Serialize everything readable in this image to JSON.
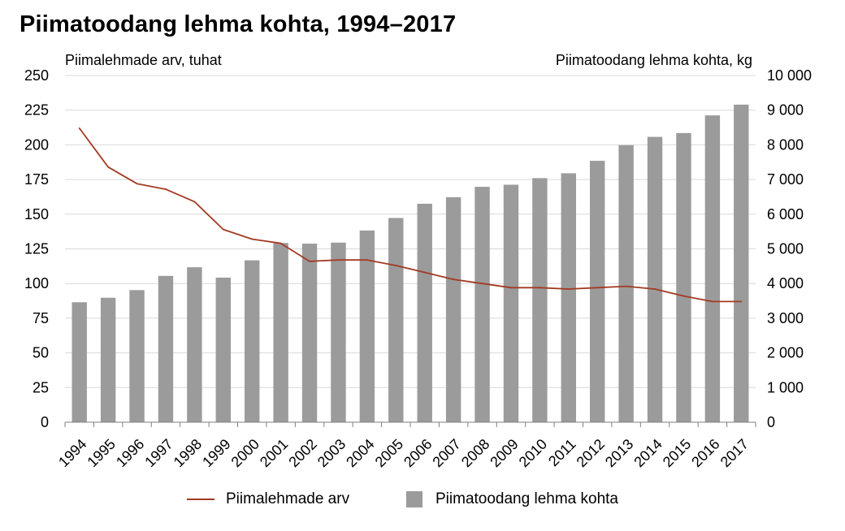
{
  "chart_data": {
    "type": "bar",
    "title": "Piimatoodang lehma kohta, 1994–2017",
    "left_axis_label": "Piimalehmade arv, tuhat",
    "right_axis_label": "Piimatoodang lehma kohta, kg",
    "categories": [
      "1994",
      "1995",
      "1996",
      "1997",
      "1998",
      "1999",
      "2000",
      "2001",
      "2002",
      "2003",
      "2004",
      "2005",
      "2006",
      "2007",
      "2008",
      "2009",
      "2010",
      "2011",
      "2012",
      "2013",
      "2014",
      "2015",
      "2016",
      "2017"
    ],
    "series": [
      {
        "name": "Piimalehmade arv",
        "type": "line",
        "axis": "left",
        "color": "#a23b22",
        "values": [
          212,
          184,
          172,
          168,
          159,
          139,
          132,
          129,
          116,
          117,
          117,
          113,
          108,
          103,
          100,
          97,
          97,
          96,
          97,
          98,
          96,
          91,
          87,
          87
        ]
      },
      {
        "name": "Piimatoodang lehma kohta",
        "type": "bar",
        "axis": "right",
        "color": "#9b9b9b",
        "values": [
          3460,
          3590,
          3810,
          4220,
          4470,
          4170,
          4670,
          5170,
          5150,
          5180,
          5530,
          5890,
          6300,
          6490,
          6790,
          6850,
          7040,
          7180,
          7540,
          7990,
          8230,
          8340,
          8850,
          9160
        ]
      }
    ],
    "left_axis": {
      "min": 0,
      "max": 250,
      "ticks": [
        "0",
        "25",
        "50",
        "75",
        "100",
        "125",
        "150",
        "175",
        "200",
        "225",
        "250"
      ]
    },
    "right_axis": {
      "min": 0,
      "max": 10000,
      "ticks": [
        "0",
        "1 000",
        "2 000",
        "3 000",
        "4 000",
        "5 000",
        "6 000",
        "7 000",
        "8 000",
        "9 000",
        "10 000"
      ]
    },
    "grid": true,
    "legend_position": "bottom"
  }
}
